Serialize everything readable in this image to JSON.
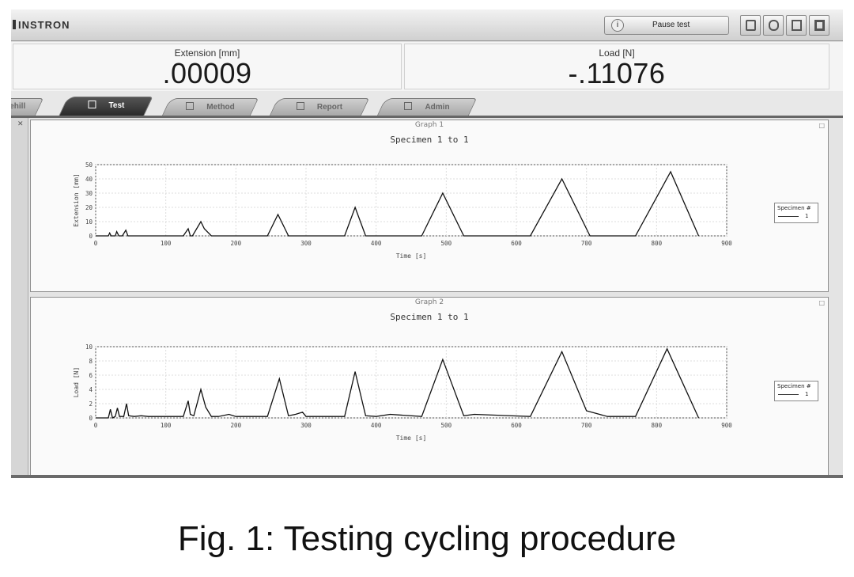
{
  "app": {
    "brand": "INSTRON",
    "pause_button": "Pause test"
  },
  "toolbar_icons": [
    "panel-icon",
    "binder-icon",
    "calculator-icon",
    "device-icon"
  ],
  "readouts": [
    {
      "label": "Extension [mm]",
      "value": ".00009"
    },
    {
      "label": "Load [N]",
      "value": "-.11076"
    }
  ],
  "tabs": [
    {
      "label": "ehill",
      "active": false
    },
    {
      "label": "Test",
      "active": true
    },
    {
      "label": "Method",
      "active": false
    },
    {
      "label": "Report",
      "active": false
    },
    {
      "label": "Admin",
      "active": false
    }
  ],
  "graphs": [
    {
      "panel_title": "Graph 1",
      "subtitle": "Specimen 1 to 1",
      "legend_title": "Specimen #",
      "legend_entry": "1"
    },
    {
      "panel_title": "Graph 2",
      "subtitle": "Specimen 1 to 1",
      "legend_title": "Specimen #",
      "legend_entry": "1"
    }
  ],
  "chart_data": [
    {
      "type": "line",
      "title": "Specimen 1 to 1",
      "xlabel": "Time [s]",
      "ylabel": "Extension [mm]",
      "xlim": [
        0,
        900
      ],
      "ylim": [
        0,
        50
      ],
      "xticks": [
        0,
        100,
        200,
        300,
        400,
        500,
        600,
        700,
        800,
        900
      ],
      "yticks": [
        0,
        10,
        20,
        30,
        40,
        50
      ],
      "grid": true,
      "legend_position": "right",
      "series": [
        {
          "name": "1",
          "x": [
            0,
            18,
            20,
            22,
            28,
            30,
            33,
            38,
            43,
            46,
            50,
            125,
            132,
            135,
            138,
            150,
            155,
            165,
            245,
            260,
            275,
            355,
            370,
            385,
            465,
            495,
            525,
            620,
            665,
            705,
            770,
            820,
            860
          ],
          "y": [
            0,
            0,
            2,
            0,
            0,
            3,
            0,
            0,
            4,
            0,
            0,
            0,
            5,
            0,
            0,
            10,
            5,
            0,
            0,
            15,
            0,
            0,
            20,
            0,
            0,
            30,
            0,
            0,
            40,
            0,
            0,
            45,
            0
          ]
        }
      ]
    },
    {
      "type": "line",
      "title": "Specimen 1 to 1",
      "xlabel": "Time [s]",
      "ylabel": "Load [N]",
      "xlim": [
        0,
        900
      ],
      "ylim": [
        0,
        10
      ],
      "xticks": [
        0,
        100,
        200,
        300,
        400,
        500,
        600,
        700,
        800,
        900
      ],
      "yticks": [
        0,
        2,
        4,
        6,
        8,
        10
      ],
      "grid": true,
      "legend_position": "right",
      "series": [
        {
          "name": "1",
          "x": [
            0,
            18,
            21,
            24,
            28,
            31,
            34,
            40,
            44,
            47,
            55,
            65,
            75,
            125,
            132,
            135,
            140,
            150,
            157,
            165,
            175,
            190,
            200,
            245,
            262,
            275,
            285,
            295,
            300,
            355,
            370,
            385,
            400,
            420,
            465,
            495,
            525,
            540,
            620,
            665,
            700,
            730,
            770,
            815,
            860
          ],
          "y": [
            0,
            0,
            1.2,
            0,
            0.2,
            1.4,
            0.2,
            0.2,
            2.0,
            0.3,
            0.2,
            0.3,
            0.2,
            0.2,
            2.4,
            0.5,
            0.3,
            4.0,
            1.5,
            0.2,
            0.2,
            0.5,
            0.2,
            0.2,
            5.5,
            0.3,
            0.5,
            0.8,
            0.2,
            0.2,
            6.5,
            0.3,
            0.2,
            0.5,
            0.2,
            8.2,
            0.3,
            0.5,
            0.2,
            9.3,
            1.0,
            0.2,
            0.2,
            9.7,
            0
          ]
        }
      ]
    }
  ],
  "caption": "Fig. 1: Testing cycling procedure"
}
